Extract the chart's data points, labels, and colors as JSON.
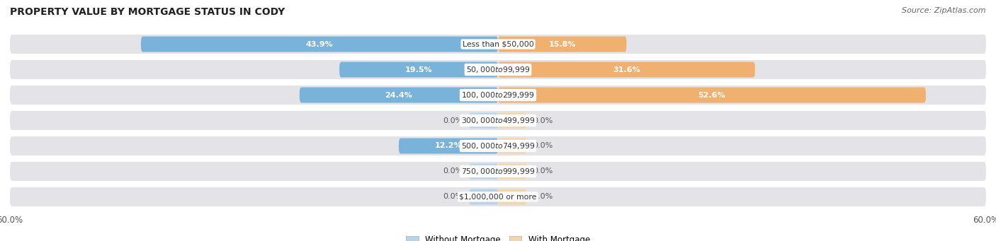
{
  "title": "PROPERTY VALUE BY MORTGAGE STATUS IN CODY",
  "source": "Source: ZipAtlas.com",
  "categories": [
    "Less than $50,000",
    "$50,000 to $99,999",
    "$100,000 to $299,999",
    "$300,000 to $499,999",
    "$500,000 to $749,999",
    "$750,000 to $999,999",
    "$1,000,000 or more"
  ],
  "without_mortgage": [
    43.9,
    19.5,
    24.4,
    0.0,
    12.2,
    0.0,
    0.0
  ],
  "with_mortgage": [
    15.8,
    31.6,
    52.6,
    0.0,
    0.0,
    0.0,
    0.0
  ],
  "axis_limit": 60.0,
  "color_without": "#7ab3d9",
  "color_with": "#f0b070",
  "color_without_stub": "#b8d4e8",
  "color_with_stub": "#f5d4aa",
  "row_bg": "#e4e4e8",
  "title_fontsize": 10,
  "label_fontsize": 8,
  "tick_fontsize": 8.5,
  "legend_fontsize": 8.5,
  "stub_size": 3.5
}
